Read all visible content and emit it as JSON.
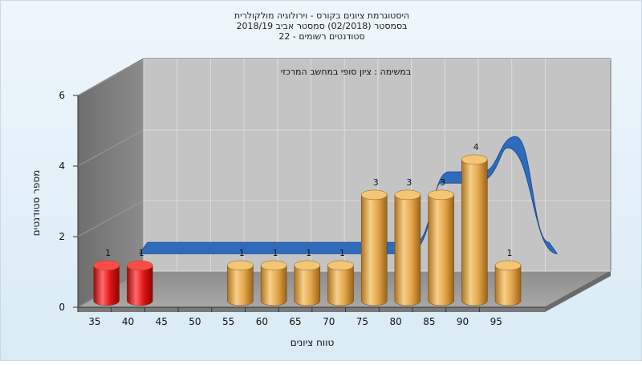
{
  "chart_data": {
    "type": "bar",
    "title_lines": [
      "היסטוגרמת ציונים בקורס - וירולוגיה מולקולרית",
      "בסמסטר  (02/2018)  סמסטר אביב 2018/19",
      "סטודנטים רשומים - 22"
    ],
    "subtitle": "במשימה : ציון סופי במחשב המרכזי",
    "xlabel": "טווח ציונים",
    "ylabel": "מספר סטודנטים",
    "ylim": [
      0,
      6
    ],
    "yticks": [
      0,
      2,
      4,
      6
    ],
    "x_ticks": [
      35,
      40,
      45,
      50,
      55,
      60,
      65,
      70,
      75,
      80,
      85,
      90,
      95
    ],
    "grid": true,
    "bars": [
      {
        "x": 35,
        "value": 1,
        "color": "#e01010"
      },
      {
        "x": 40,
        "value": 1,
        "color": "#e01010"
      },
      {
        "x": 55,
        "value": 1,
        "color": "#e0a040"
      },
      {
        "x": 60,
        "value": 1,
        "color": "#e0a040"
      },
      {
        "x": 65,
        "value": 1,
        "color": "#e0a040"
      },
      {
        "x": 70,
        "value": 1,
        "color": "#e0a040"
      },
      {
        "x": 75,
        "value": 3,
        "color": "#e0a040"
      },
      {
        "x": 80,
        "value": 3,
        "color": "#e0a040"
      },
      {
        "x": 85,
        "value": 3,
        "color": "#e0a040"
      },
      {
        "x": 90,
        "value": 4,
        "color": "#e0a040"
      },
      {
        "x": 95,
        "value": 1,
        "color": "#e0a040"
      }
    ],
    "ribbon": {
      "color": "#2f6bbd",
      "values": [
        {
          "x": 37.5,
          "y": 1
        },
        {
          "x": 77.5,
          "y": 1
        },
        {
          "x": 82.5,
          "y": 3
        },
        {
          "x": 87.5,
          "y": 3
        },
        {
          "x": 92.5,
          "y": 4
        },
        {
          "x": 97.5,
          "y": 1
        }
      ]
    }
  }
}
